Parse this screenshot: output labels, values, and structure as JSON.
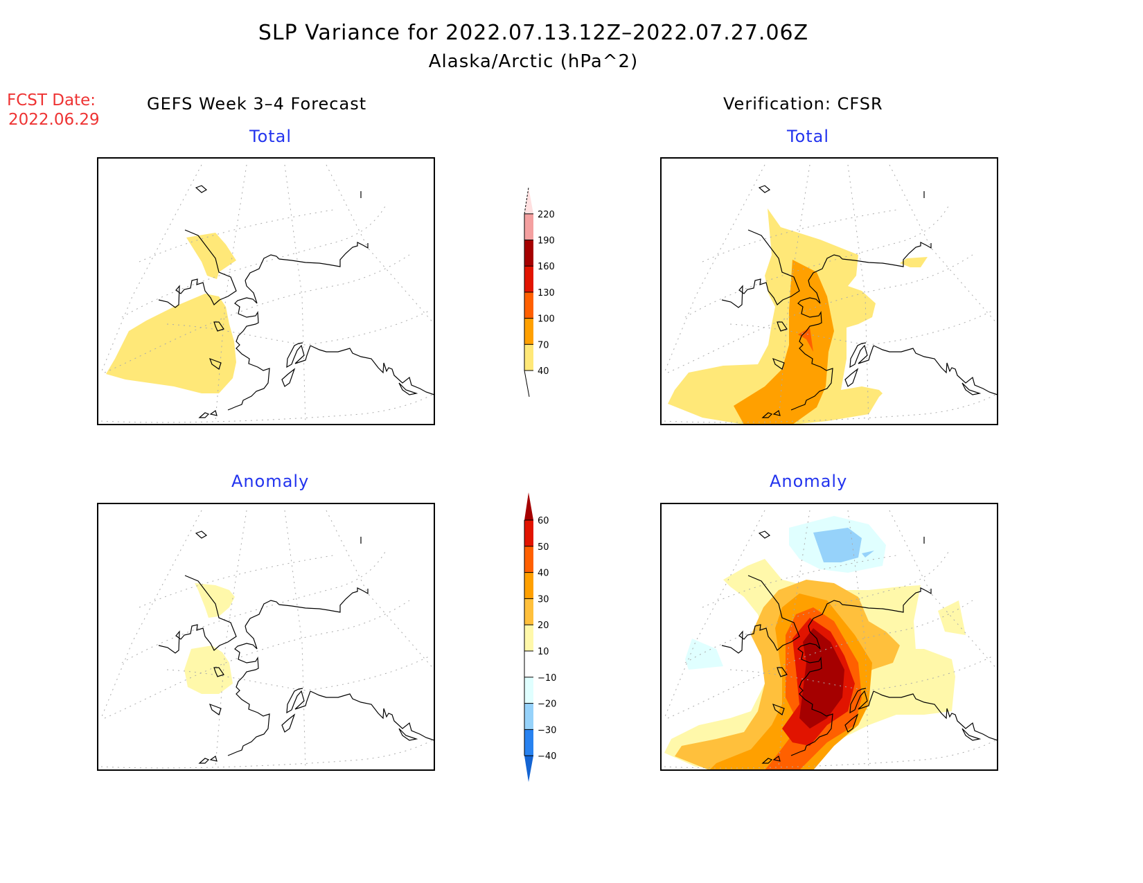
{
  "title": "SLP Variance for 2022.07.13.12Z–2022.07.27.06Z",
  "subtitle": "Alaska/Arctic (hPa^2)",
  "fcst_date_label": "FCST Date:",
  "fcst_date": "2022.06.29",
  "left_header": "GEFS Week 3–4 Forecast",
  "right_header": "Verification: CFSR",
  "chart_data": [
    {
      "type": "heatmap",
      "title": "Total",
      "column": "GEFS Week 3–4 Forecast",
      "description_levels": [
        40,
        70,
        100,
        130,
        160,
        190,
        220
      ],
      "max_level_present": "40-70"
    },
    {
      "type": "heatmap",
      "title": "Total",
      "column": "Verification: CFSR",
      "max_level_present": "100-130"
    },
    {
      "type": "heatmap",
      "title": "Anomaly",
      "column": "GEFS Week 3–4 Forecast",
      "max_level_present": "10-20"
    },
    {
      "type": "heatmap",
      "title": "Anomaly",
      "column": "Verification: CFSR",
      "max_level_present": ">60",
      "min_level_present": "-30 to -20"
    }
  ],
  "colorbars": {
    "total": {
      "ticks": [
        "40",
        "70",
        "100",
        "130",
        "160",
        "190",
        "220"
      ],
      "colors": [
        "#ffe878",
        "#ffa000",
        "#ff6000",
        "#e11400",
        "#a50000",
        "#f4a0a0",
        "#ffe0e0"
      ]
    },
    "anomaly": {
      "ticks": [
        "60",
        "50",
        "40",
        "30",
        "20",
        "10",
        "−10",
        "−20",
        "−30",
        "−40"
      ],
      "colors": [
        "#a50000",
        "#e11400",
        "#ff6000",
        "#ffa000",
        "#ffc03c",
        "#fff8aa",
        "#ffffff",
        "#e0ffff",
        "#96d2fa",
        "#2882f0",
        "#1464d2"
      ]
    }
  },
  "panel_titles": {
    "total": "Total",
    "anomaly": "Anomaly"
  }
}
